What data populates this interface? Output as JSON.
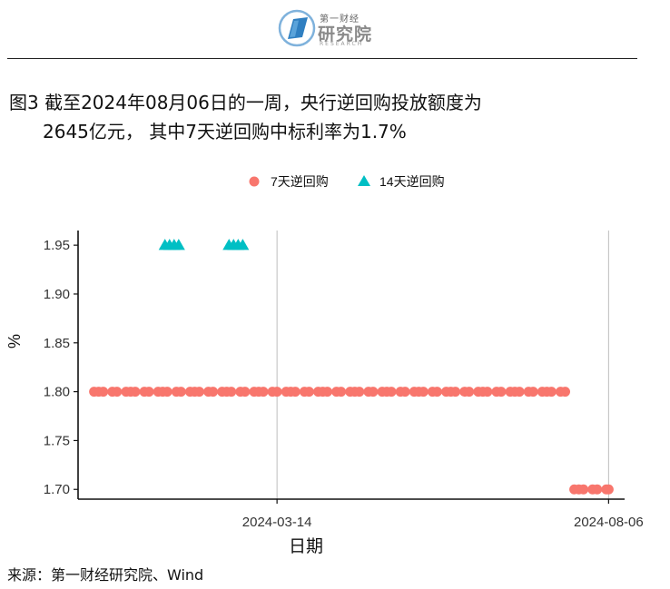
{
  "logo": {
    "top_text": "第一财经",
    "main_text": "研究院",
    "sub_text": "RESEARCH"
  },
  "title": {
    "line1": "图3  截至2024年08月06日的一周，央行逆回购投放额度为",
    "line2": "2645亿元， 其中7天逆回购中标利率为1.7%"
  },
  "source": "来源：第一财经研究院、Wind",
  "colors": {
    "seven_day": "#F8766D",
    "fourteen_day": "#00BFC4"
  },
  "chart_data": {
    "type": "scatter",
    "xlabel": "日期",
    "ylabel": "%",
    "ylim": [
      1.69,
      1.965
    ],
    "xlim": [
      "2023-12-18",
      "2024-08-13"
    ],
    "yticks": [
      1.7,
      1.75,
      1.8,
      1.85,
      1.9,
      1.95
    ],
    "ytick_labels": [
      "1.70",
      "1.75",
      "1.80",
      "1.85",
      "1.90",
      "1.95"
    ],
    "xticks": [
      "2024-03-14",
      "2024-08-06"
    ],
    "grid": "vertical",
    "legend_position": "top",
    "series": [
      {
        "name": "7天逆回购",
        "marker": "circle",
        "x": [
          "2023-12-25",
          "2023-12-27",
          "2023-12-29",
          "2024-01-02",
          "2024-01-04",
          "2024-01-08",
          "2024-01-10",
          "2024-01-12",
          "2024-01-16",
          "2024-01-18",
          "2024-01-22",
          "2024-01-24",
          "2024-01-26",
          "2024-01-30",
          "2024-02-01",
          "2024-02-05",
          "2024-02-07",
          "2024-02-09",
          "2024-02-13",
          "2024-02-15",
          "2024-02-19",
          "2024-02-21",
          "2024-02-23",
          "2024-02-27",
          "2024-02-29",
          "2024-03-04",
          "2024-03-06",
          "2024-03-08",
          "2024-03-12",
          "2024-03-14",
          "2024-03-18",
          "2024-03-20",
          "2024-03-22",
          "2024-03-26",
          "2024-03-28",
          "2024-04-01",
          "2024-04-03",
          "2024-04-05",
          "2024-04-09",
          "2024-04-11",
          "2024-04-15",
          "2024-04-17",
          "2024-04-19",
          "2024-04-23",
          "2024-04-25",
          "2024-04-29",
          "2024-05-01",
          "2024-05-03",
          "2024-05-07",
          "2024-05-09",
          "2024-05-13",
          "2024-05-15",
          "2024-05-17",
          "2024-05-21",
          "2024-05-23",
          "2024-05-27",
          "2024-05-29",
          "2024-05-31",
          "2024-06-04",
          "2024-06-06",
          "2024-06-10",
          "2024-06-12",
          "2024-06-14",
          "2024-06-18",
          "2024-06-20",
          "2024-06-24",
          "2024-06-26",
          "2024-06-28",
          "2024-07-02",
          "2024-07-04",
          "2024-07-08",
          "2024-07-10",
          "2024-07-12",
          "2024-07-16",
          "2024-07-18",
          "2024-07-22",
          "2024-07-24",
          "2024-07-26",
          "2024-07-30",
          "2024-08-01",
          "2024-08-05",
          "2024-08-06"
        ],
        "y": [
          1.8,
          1.8,
          1.8,
          1.8,
          1.8,
          1.8,
          1.8,
          1.8,
          1.8,
          1.8,
          1.8,
          1.8,
          1.8,
          1.8,
          1.8,
          1.8,
          1.8,
          1.8,
          1.8,
          1.8,
          1.8,
          1.8,
          1.8,
          1.8,
          1.8,
          1.8,
          1.8,
          1.8,
          1.8,
          1.8,
          1.8,
          1.8,
          1.8,
          1.8,
          1.8,
          1.8,
          1.8,
          1.8,
          1.8,
          1.8,
          1.8,
          1.8,
          1.8,
          1.8,
          1.8,
          1.8,
          1.8,
          1.8,
          1.8,
          1.8,
          1.8,
          1.8,
          1.8,
          1.8,
          1.8,
          1.8,
          1.8,
          1.8,
          1.8,
          1.8,
          1.8,
          1.8,
          1.8,
          1.8,
          1.8,
          1.8,
          1.8,
          1.8,
          1.8,
          1.8,
          1.8,
          1.8,
          1.8,
          1.8,
          1.8,
          1.7,
          1.7,
          1.7,
          1.7,
          1.7,
          1.7,
          1.7
        ]
      },
      {
        "name": "14天逆回购",
        "marker": "triangle",
        "x": [
          "2024-01-25",
          "2024-01-27",
          "2024-01-29",
          "2024-01-31",
          "2024-02-22",
          "2024-02-24",
          "2024-02-26",
          "2024-02-28"
        ],
        "y": [
          1.95,
          1.95,
          1.95,
          1.95,
          1.95,
          1.95,
          1.95,
          1.95
        ]
      }
    ]
  }
}
